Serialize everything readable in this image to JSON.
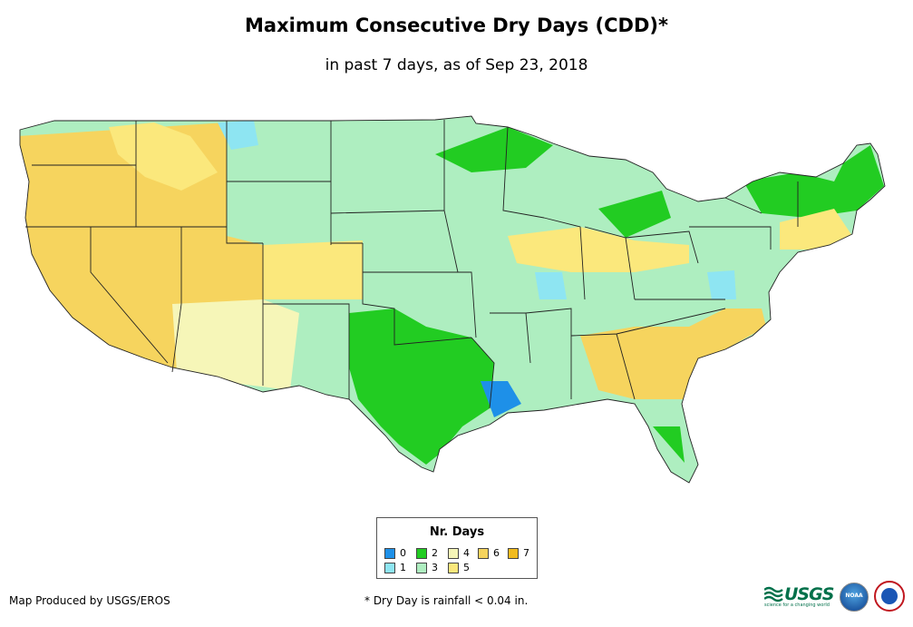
{
  "title": "Maximum Consecutive Dry Days (CDD)*",
  "subtitle": "in past 7 days, as of Sep 23, 2018",
  "legend": {
    "title": "Nr. Days",
    "items": [
      {
        "label": "0",
        "color": "#1e90e8"
      },
      {
        "label": "1",
        "color": "#8ee5f2"
      },
      {
        "label": "2",
        "color": "#22cc22"
      },
      {
        "label": "3",
        "color": "#aeeec0"
      },
      {
        "label": "4",
        "color": "#f6f6b8"
      },
      {
        "label": "5",
        "color": "#fbe87c"
      },
      {
        "label": "6",
        "color": "#f6d45e"
      },
      {
        "label": "7",
        "color": "#f2bb1e"
      }
    ]
  },
  "footer": {
    "producer": "Map Produced by USGS/EROS",
    "note": "* Dry Day is rainfall < 0.04 in."
  },
  "logos": {
    "usgs": "USGS",
    "usgs_tagline": "science for a changing world",
    "noaa": "NOAA"
  }
}
